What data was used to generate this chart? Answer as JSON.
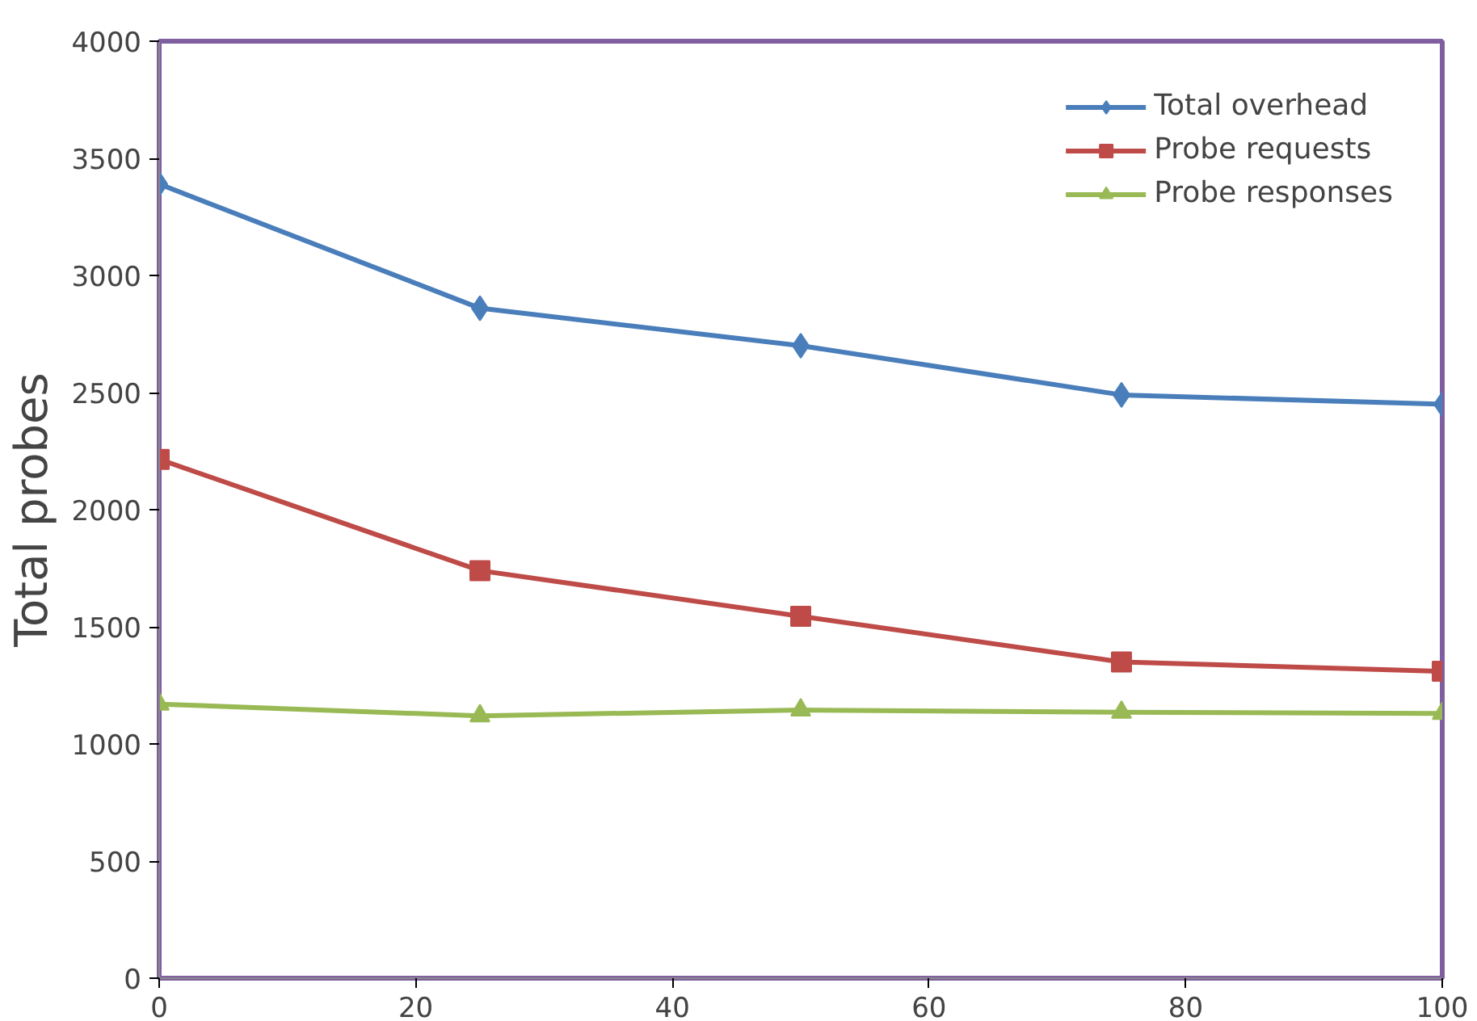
{
  "chart_data": {
    "type": "line",
    "ylabel": "Total probes",
    "x": [
      0,
      25,
      50,
      75,
      100
    ],
    "series": [
      {
        "name": "Total overhead",
        "color": "#4a7ebb",
        "marker": "diamond",
        "values": [
          3390,
          2860,
          2700,
          2490,
          2450
        ]
      },
      {
        "name": "Probe requests",
        "color": "#be4b48",
        "marker": "square",
        "values": [
          2215,
          1740,
          1545,
          1350,
          1310
        ]
      },
      {
        "name": "Probe responses",
        "color": "#98b954",
        "marker": "triangle",
        "values": [
          1170,
          1120,
          1145,
          1135,
          1130
        ]
      }
    ],
    "xlim": [
      0,
      100
    ],
    "xticks": [
      0,
      20,
      40,
      60,
      80,
      100
    ],
    "ylim": [
      0,
      4000
    ],
    "yticks": [
      0,
      500,
      1000,
      1500,
      2000,
      2500,
      3000,
      3500,
      4000
    ],
    "grid": false,
    "legend": "top right",
    "line_style": "solid"
  }
}
